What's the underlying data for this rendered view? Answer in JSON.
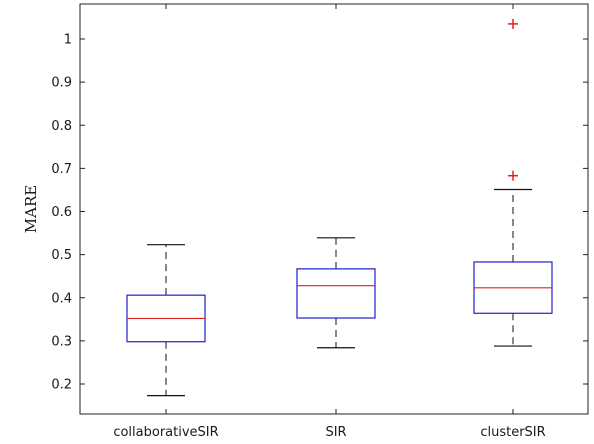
{
  "chart_data": {
    "type": "box",
    "xlabel": "",
    "ylabel": "MARE",
    "ylim": [
      0.15,
      1.08
    ],
    "yticks": [
      0.2,
      0.3,
      0.4,
      0.5,
      0.6,
      0.7,
      0.8,
      0.9,
      1
    ],
    "ytick_labels": [
      "0.2",
      "0.3",
      "0.4",
      "0.5",
      "0.6",
      "0.7",
      "0.8",
      "0.9",
      "1"
    ],
    "grid": false,
    "categories": [
      "collaborativeSIR",
      "SIR",
      "clusterSIR"
    ],
    "boxes": [
      {
        "label": "collaborativeSIR",
        "whisker_low": 0.173,
        "q1": 0.298,
        "median": 0.352,
        "q3": 0.406,
        "whisker_high": 0.523,
        "outliers": []
      },
      {
        "label": "SIR",
        "whisker_low": 0.284,
        "q1": 0.353,
        "median": 0.428,
        "q3": 0.467,
        "whisker_high": 0.539,
        "outliers": []
      },
      {
        "label": "clusterSIR",
        "whisker_low": 0.288,
        "q1": 0.364,
        "median": 0.423,
        "q3": 0.483,
        "whisker_high": 0.651,
        "outliers": [
          0.683,
          1.035
        ]
      }
    ],
    "colors": {
      "box": "#2020d0",
      "median": "#e02020",
      "whisker": "#111111",
      "outlier": "#e02020",
      "axes": "#222222"
    }
  }
}
